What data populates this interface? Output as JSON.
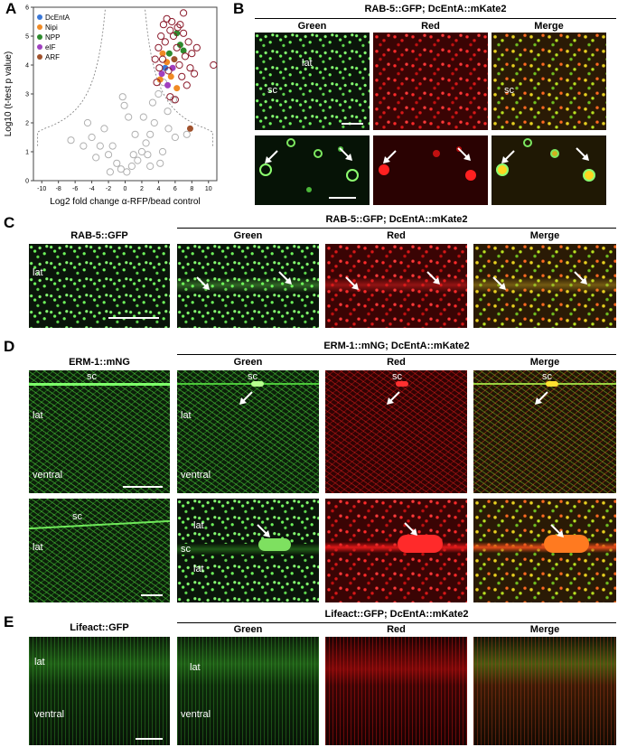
{
  "panels": {
    "A": {
      "label": "A",
      "legend": [
        {
          "name": "DcEntA",
          "color": "#3a78d8"
        },
        {
          "name": "Nipi",
          "color": "#f08a24"
        },
        {
          "name": "NPP",
          "color": "#2e8b2e"
        },
        {
          "name": "eIF",
          "color": "#a040c0"
        },
        {
          "name": "ARF",
          "color": "#a0522d"
        }
      ]
    },
    "B": {
      "label": "B",
      "title": "RAB-5::GFP; DcEntA::mKate2",
      "cols": [
        "Green",
        "Red",
        "Merge"
      ],
      "lat": "lat",
      "sc1": "sc",
      "sc2": "sc"
    },
    "C": {
      "label": "C",
      "left_title": "RAB-5::GFP",
      "title": "RAB-5::GFP; DcEntA::mKate2",
      "cols": [
        "Green",
        "Red",
        "Merge"
      ],
      "lat": "lat"
    },
    "D": {
      "label": "D",
      "left_title": "ERM-1::mNG",
      "title": "ERM-1::mNG; DcEntA::mKate2",
      "cols": [
        "Green",
        "Red",
        "Merge"
      ],
      "sc": "sc",
      "lat": "lat",
      "ventral": "ventral"
    },
    "E": {
      "label": "E",
      "left_title": "Lifeact::GFP",
      "title": "Lifeact::GFP; DcEntA::mKate2",
      "cols": [
        "Green",
        "Red",
        "Merge"
      ],
      "lat": "lat",
      "ventral": "ventral"
    }
  },
  "chart_data": {
    "type": "scatter",
    "xlabel": "Log2 fold change α-RFP/bead control",
    "ylabel": "Log10 (t-test p value)",
    "xlim": [
      -11,
      11
    ],
    "ylim": [
      0,
      6
    ],
    "xticks": [
      -10,
      -8,
      -6,
      -4,
      -2,
      0,
      2,
      4,
      6,
      8,
      10
    ],
    "yticks": [
      0,
      1,
      2,
      3,
      4,
      5,
      6
    ],
    "series": [
      {
        "name": "background",
        "color": "#b0b0b0",
        "points": [
          [
            0.2,
            0.3
          ],
          [
            0.8,
            0.5
          ],
          [
            -0.5,
            0.4
          ],
          [
            1.5,
            0.7
          ],
          [
            2,
            1
          ],
          [
            2.5,
            1.3
          ],
          [
            3,
            1.6
          ],
          [
            3.5,
            2
          ],
          [
            1,
            0.9
          ],
          [
            -1,
            0.6
          ],
          [
            -2,
            0.9
          ],
          [
            -3,
            1.2
          ],
          [
            -4,
            1.5
          ],
          [
            -5,
            1.2
          ],
          [
            -6.5,
            1.4
          ],
          [
            -3.5,
            0.8
          ],
          [
            -1.5,
            1.2
          ],
          [
            -0.3,
            2.9
          ],
          [
            -0.1,
            2.6
          ],
          [
            0.4,
            2.2
          ],
          [
            2.7,
            0.9
          ],
          [
            4.5,
            1
          ],
          [
            5.2,
            1.8
          ],
          [
            6,
            1.5
          ],
          [
            3.3,
            2.7
          ],
          [
            4,
            3
          ],
          [
            5.1,
            2.4
          ],
          [
            2.2,
            2.2
          ],
          [
            1.2,
            1.6
          ],
          [
            -2.5,
            1.8
          ],
          [
            -4.5,
            2
          ],
          [
            -1.8,
            0.3
          ],
          [
            3,
            0.5
          ],
          [
            4.2,
            0.6
          ],
          [
            7.4,
            1.6
          ],
          [
            5.8,
            2.8
          ],
          [
            4.6,
            3.4
          ]
        ]
      },
      {
        "name": "DcEntA",
        "color": "#3a78d8",
        "points": [
          [
            4.8,
            3.9
          ]
        ]
      },
      {
        "name": "Nipi",
        "color": "#f08a24",
        "points": [
          [
            4.5,
            4.4
          ],
          [
            5,
            4.1
          ],
          [
            5.5,
            3.6
          ],
          [
            6.2,
            3.2
          ],
          [
            4.2,
            3.5
          ]
        ]
      },
      {
        "name": "NPP",
        "color": "#2e8b2e",
        "points": [
          [
            6.6,
            4.7
          ],
          [
            7,
            4.5
          ],
          [
            6.2,
            5.1
          ],
          [
            5.3,
            4.4
          ]
        ]
      },
      {
        "name": "eIF",
        "color": "#a040c0",
        "points": [
          [
            4.4,
            3.7
          ],
          [
            5.1,
            3.3
          ],
          [
            5.7,
            3.9
          ]
        ]
      },
      {
        "name": "ARF",
        "color": "#a0522d",
        "points": [
          [
            5.9,
            4.2
          ],
          [
            7.8,
            1.8
          ]
        ]
      },
      {
        "name": "enriched",
        "color": "#8b1a2b",
        "points": [
          [
            3.6,
            4.2
          ],
          [
            4,
            4.6
          ],
          [
            4.3,
            5
          ],
          [
            4.6,
            5.4
          ],
          [
            5,
            5.6
          ],
          [
            5.4,
            5.2
          ],
          [
            5.8,
            5
          ],
          [
            6.2,
            4.6
          ],
          [
            6.6,
            5.4
          ],
          [
            7,
            5.1
          ],
          [
            7.2,
            4.3
          ],
          [
            7.6,
            4.8
          ],
          [
            8,
            4.4
          ],
          [
            6.8,
            3.6
          ],
          [
            7.4,
            3.3
          ],
          [
            6,
            2.8
          ],
          [
            5.4,
            2.9
          ],
          [
            4.8,
            4.8
          ],
          [
            4.1,
            3.9
          ],
          [
            3.8,
            3.4
          ],
          [
            5.2,
            3.8
          ],
          [
            6.5,
            4
          ],
          [
            7.8,
            3.9
          ],
          [
            8.3,
            3.7
          ],
          [
            8.6,
            4.6
          ],
          [
            7,
            5.8
          ],
          [
            5.6,
            5.5
          ],
          [
            4.5,
            4.2
          ],
          [
            6.3,
            5.3
          ],
          [
            10.6,
            4
          ]
        ]
      }
    ]
  }
}
